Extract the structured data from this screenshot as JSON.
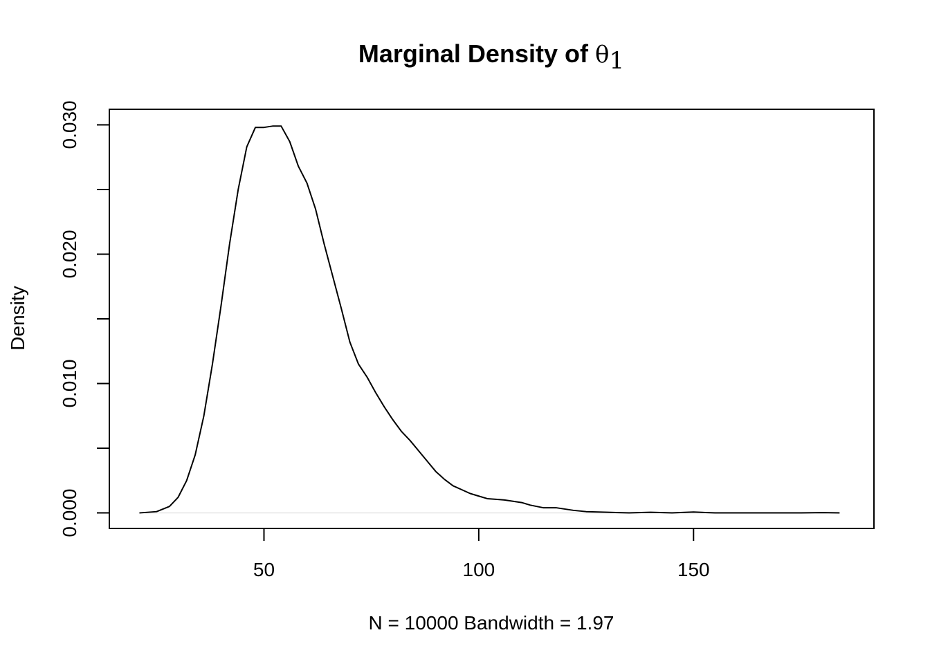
{
  "chart_data": {
    "type": "line",
    "title": {
      "text": "Marginal Density of ",
      "symbol": "θ",
      "subscript": "1"
    },
    "xlabel": "N = 10000   Bandwidth = 1.97",
    "ylabel": "Density",
    "xlim": [
      14,
      192
    ],
    "ylim": [
      -0.0012,
      0.0312
    ],
    "x_ticks": [
      50,
      100,
      150
    ],
    "x_tick_labels": [
      "50",
      "100",
      "150"
    ],
    "y_ticks": [
      0,
      0.005,
      0.01,
      0.015,
      0.02,
      0.025,
      0.03
    ],
    "y_tick_labels": [
      "0.000",
      "",
      "0.010",
      "",
      "0.020",
      "",
      "0.030"
    ],
    "grid": false,
    "series": [
      {
        "x": [
          21,
          25,
          28,
          30,
          32,
          34,
          36,
          38,
          40,
          42,
          44,
          46,
          48,
          50,
          52,
          54,
          56,
          58,
          60,
          62,
          64,
          66,
          68,
          70,
          72,
          74,
          76,
          78,
          80,
          82,
          84,
          86,
          88,
          90,
          92,
          94,
          96,
          98,
          100,
          102,
          104,
          106,
          108,
          110,
          112,
          115,
          118,
          120,
          122,
          125,
          130,
          135,
          140,
          145,
          150,
          155,
          160,
          165,
          170,
          175,
          180,
          184
        ],
        "y": [
          0,
          0.0001,
          0.0005,
          0.0012,
          0.0025,
          0.0045,
          0.0075,
          0.0115,
          0.016,
          0.0208,
          0.025,
          0.0283,
          0.0298,
          0.0298,
          0.0299,
          0.0299,
          0.0287,
          0.0268,
          0.0255,
          0.0235,
          0.0208,
          0.0183,
          0.0158,
          0.0132,
          0.0115,
          0.0105,
          0.0093,
          0.0082,
          0.0072,
          0.0063,
          0.0056,
          0.0048,
          0.004,
          0.0032,
          0.0026,
          0.0021,
          0.0018,
          0.0015,
          0.0013,
          0.0011,
          0.00105,
          0.001,
          0.0009,
          0.0008,
          0.0006,
          0.0004,
          0.0004,
          0.0003,
          0.0002,
          0.0001,
          5e-05,
          0.0,
          5e-05,
          0.0,
          7e-05,
          0.0,
          0.0,
          0.0,
          0.0,
          0.0,
          2e-05,
          0.0
        ]
      }
    ]
  }
}
